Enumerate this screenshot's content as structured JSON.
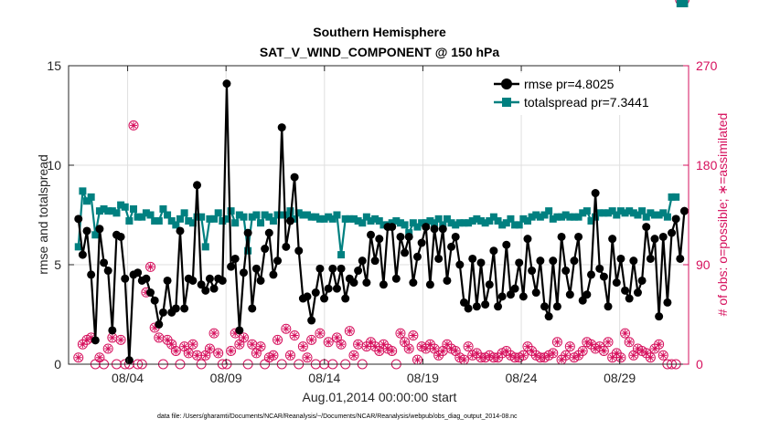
{
  "chart_data": {
    "type": "line",
    "title": "Southern Hemisphere",
    "subtitle": "SAT_V_WIND_COMPONENT @ 150 hPa",
    "xlabel": "Aug.01,2014 00:00:00 start",
    "ylabel": "rmse and totalspread",
    "ylabel_right": "# of obs: o=possible; ∗=assimilated",
    "footnote": "data file: /Users/gharamti/Documents/NCAR/Reanalysis/~/Documents/NCAR/Reanalysis/webpub/obs_diag_output_2014-08.nc",
    "xlim": [
      0.5,
      32.0
    ],
    "ylim": [
      0,
      15
    ],
    "ylim_right": [
      0,
      270
    ],
    "x_ticks": [
      3.5,
      8.5,
      13.5,
      18.5,
      23.5,
      28.5
    ],
    "x_tick_labels": [
      "08/04",
      "08/09",
      "08/14",
      "08/19",
      "08/24",
      "08/29"
    ],
    "y_ticks": [
      0,
      5,
      10,
      15
    ],
    "y_ticks_right": [
      0,
      90,
      180,
      270
    ],
    "grid": true,
    "legend_position": "top-right",
    "colors": {
      "rmse": "#000000",
      "totalspread": "#008080",
      "obs": "#d6105d"
    },
    "series": [
      {
        "name": "rmse pr=4.8025",
        "values": [
          7.3,
          5.5,
          6.7,
          4.5,
          1.2,
          6.8,
          5.1,
          4.7,
          1.7,
          6.5,
          6.4,
          4.3,
          0.2,
          4.5,
          4.6,
          4.2,
          4.3,
          3.6,
          3.2,
          2.0,
          2.6,
          4.2,
          2.6,
          2.8,
          6.7,
          2.8,
          4.3,
          4.2,
          9.0,
          4.0,
          3.7,
          4.3,
          3.8,
          4.3,
          4.2,
          14.1,
          4.9,
          5.3,
          1.7,
          4.6,
          6.6,
          2.8,
          4.8,
          4.2,
          5.8,
          6.6,
          4.5,
          5.2,
          11.9,
          5.9,
          7.2,
          9.4,
          5.7,
          3.3,
          3.4,
          2.2,
          3.6,
          4.8,
          3.3,
          3.8,
          4.8,
          3.8,
          4.8,
          3.3,
          4.3,
          4.1,
          4.7,
          5.2,
          4.1,
          6.5,
          5.2,
          6.3,
          4.0,
          6.9,
          6.9,
          4.3,
          6.4,
          5.6,
          6.4,
          4.1,
          5.4,
          6.1,
          6.9,
          4.0,
          6.8,
          5.3,
          6.8,
          4.2,
          5.9,
          6.4,
          5.0,
          3.1,
          2.8,
          5.3,
          2.9,
          5.1,
          3.0,
          4.0,
          5.7,
          2.9,
          3.4,
          6.0,
          3.5,
          3.8,
          5.1,
          3.4,
          6.3,
          4.7,
          3.6,
          5.2,
          2.9,
          2.4,
          5.2,
          2.9,
          6.4,
          4.7,
          3.5,
          5.2,
          6.4,
          3.2,
          3.5,
          4.5,
          8.6,
          4.8,
          4.4,
          2.9,
          6.3,
          4.1,
          5.3,
          3.7,
          3.3,
          5.2,
          3.6,
          4.2,
          6.9,
          5.3,
          6.3,
          2.4,
          6.4,
          3.1,
          6.6,
          7.3,
          5.3,
          7.7
        ]
      },
      {
        "name": "totalspread pr=7.3441",
        "values": [
          5.9,
          8.7,
          8.2,
          8.4,
          6.5,
          7.7,
          7.8,
          7.7,
          7.7,
          7.6,
          8.0,
          7.9,
          7.2,
          7.8,
          7.4,
          7.4,
          7.6,
          7.5,
          7.2,
          7.2,
          7.8,
          7.5,
          7.2,
          7.0,
          7.3,
          7.6,
          7.2,
          7.1,
          7.4,
          7.4,
          5.9,
          7.3,
          7.3,
          7.6,
          7.2,
          7.3,
          7.7,
          7.1,
          7.5,
          7.4,
          5.7,
          7.4,
          7.5,
          7.1,
          7.5,
          7.4,
          7.2,
          7.5,
          7.5,
          7.5,
          7.7,
          7.3,
          7.6,
          7.5,
          7.5,
          7.4,
          7.4,
          7.3,
          7.3,
          7.4,
          7.3,
          7.5,
          5.5,
          7.3,
          7.3,
          7.3,
          7.2,
          7.1,
          7.4,
          7.2,
          7.3,
          7.2,
          7.0,
          7.0,
          7.1,
          7.2,
          7.1,
          7.0,
          6.6,
          7.1,
          6.9,
          7.1,
          7.1,
          7.2,
          7.1,
          7.3,
          7.0,
          7.3,
          7.1,
          7.0,
          7.1,
          7.1,
          7.1,
          7.2,
          7.3,
          7.2,
          7.1,
          7.2,
          7.4,
          7.2,
          7.0,
          7.1,
          7.3,
          7.0,
          7.0,
          7.3,
          7.2,
          7.4,
          7.5,
          7.4,
          7.5,
          7.7,
          7.3,
          7.4,
          7.4,
          7.5,
          7.4,
          7.4,
          7.4,
          7.6,
          7.7,
          7.2,
          7.4,
          7.6,
          7.6,
          7.6,
          7.7,
          7.5,
          7.7,
          7.6,
          7.7,
          7.6,
          7.5,
          7.7,
          7.4,
          7.6,
          7.5,
          7.5,
          7.6,
          7.4,
          8.4,
          8.4
        ]
      },
      {
        "name": "# of obs possible",
        "values": [
          6,
          18,
          22,
          24,
          0,
          6,
          0,
          14,
          24,
          0,
          22,
          0,
          0,
          216,
          0,
          0,
          65,
          88,
          33,
          24,
          0,
          22,
          18,
          12,
          0,
          16,
          10,
          18,
          8,
          0,
          8,
          14,
          28,
          10,
          0,
          0,
          12,
          28,
          18,
          24,
          0,
          18,
          10,
          16,
          0,
          6,
          8,
          22,
          0,
          32,
          8,
          26,
          0,
          16,
          6,
          22,
          0,
          28,
          0,
          20,
          0,
          24,
          18,
          0,
          30,
          8,
          18,
          0,
          16,
          20,
          16,
          12,
          18,
          14,
          12,
          0,
          28,
          20,
          14,
          26,
          4,
          16,
          14,
          18,
          14,
          8,
          12,
          18,
          14,
          12,
          6,
          4,
          16,
          8,
          10,
          6,
          6,
          8,
          6,
          6,
          10,
          12,
          8,
          6,
          6,
          8,
          16,
          12,
          8,
          6,
          6,
          8,
          10,
          20,
          4,
          8,
          16,
          6,
          8,
          12,
          20,
          18,
          14,
          16,
          12,
          20,
          6,
          10,
          6,
          28,
          20,
          8,
          14,
          12,
          10,
          6,
          14,
          18,
          8,
          0,
          0,
          0
        ]
      },
      {
        "name": "# of obs assimilated",
        "values": [
          6,
          18,
          22,
          24,
          0,
          6,
          0,
          14,
          24,
          0,
          22,
          0,
          0,
          216,
          0,
          0,
          65,
          88,
          33,
          24,
          0,
          22,
          18,
          12,
          0,
          16,
          10,
          18,
          8,
          0,
          8,
          14,
          28,
          10,
          0,
          0,
          12,
          28,
          18,
          24,
          0,
          18,
          10,
          16,
          0,
          6,
          8,
          22,
          0,
          32,
          8,
          26,
          0,
          16,
          6,
          22,
          0,
          28,
          0,
          20,
          0,
          24,
          18,
          0,
          30,
          8,
          18,
          0,
          16,
          20,
          16,
          12,
          18,
          14,
          12,
          0,
          28,
          20,
          14,
          26,
          4,
          16,
          14,
          18,
          14,
          8,
          12,
          18,
          14,
          12,
          6,
          4,
          16,
          8,
          10,
          6,
          6,
          8,
          6,
          6,
          10,
          12,
          8,
          6,
          6,
          8,
          16,
          12,
          8,
          6,
          6,
          8,
          10,
          20,
          4,
          8,
          16,
          6,
          8,
          12,
          20,
          18,
          14,
          16,
          12,
          20,
          6,
          10,
          6,
          28,
          20,
          8,
          14,
          12,
          10,
          6,
          14,
          18,
          8,
          0,
          0,
          0
        ]
      }
    ]
  }
}
